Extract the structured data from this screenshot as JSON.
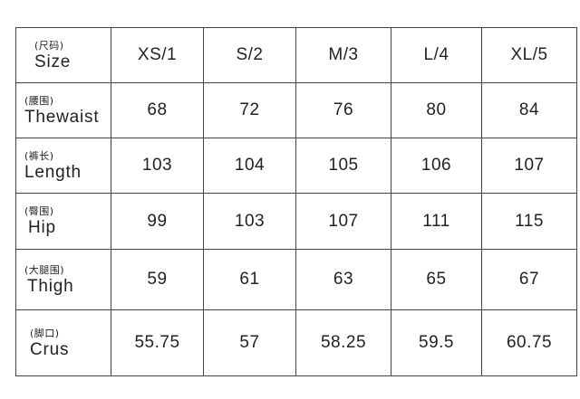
{
  "table": {
    "header": {
      "label_cn": "(尺码)",
      "label_en": "Size",
      "sizes": [
        "XS/1",
        "S/2",
        "M/3",
        "L/4",
        "XL/5"
      ]
    },
    "rows": [
      {
        "label_cn": "(腰围)",
        "label_en": "Thewaist",
        "values": [
          "68",
          "72",
          "76",
          "80",
          "84"
        ]
      },
      {
        "label_cn": "(裤长)",
        "label_en": "Length",
        "values": [
          "103",
          "104",
          "105",
          "106",
          "107"
        ]
      },
      {
        "label_cn": "(臀围)",
        "label_en": "Hip",
        "values": [
          "99",
          "103",
          "107",
          "111",
          "115"
        ]
      },
      {
        "label_cn": "(大腿围)",
        "label_en": "Thigh",
        "values": [
          "59",
          "61",
          "63",
          "65",
          "67"
        ]
      },
      {
        "label_cn": "(脚口)",
        "label_en": "Crus",
        "values": [
          "55.75",
          "57",
          "58.25",
          "59.5",
          "60.75"
        ]
      }
    ]
  }
}
